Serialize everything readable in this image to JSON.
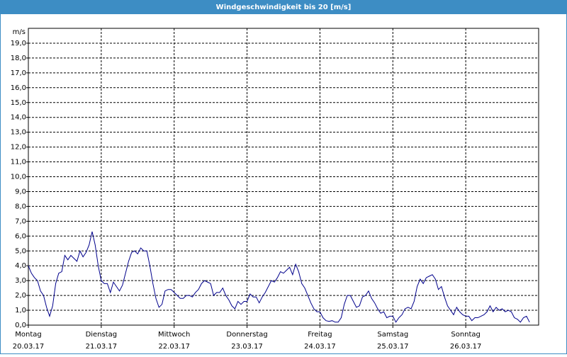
{
  "chart_data": {
    "type": "line",
    "title": "Windgeschwindigkeit bis 20 [m/s]",
    "y_label": "m/s",
    "x": [
      0,
      1,
      2,
      3,
      4,
      5,
      6,
      7,
      8,
      9,
      10,
      11,
      12,
      13,
      14,
      15,
      16,
      17,
      18,
      19,
      20,
      21,
      22,
      23,
      24,
      25,
      26,
      27,
      28,
      29,
      30,
      31,
      32,
      33,
      34,
      35,
      36,
      37,
      38,
      39,
      40,
      41,
      42,
      43,
      44,
      45,
      46,
      47,
      48,
      49,
      50,
      51,
      52,
      53,
      54,
      55,
      56,
      57,
      58,
      59,
      60,
      61,
      62,
      63,
      64,
      65,
      66,
      67,
      68,
      69,
      70,
      71,
      72,
      73,
      74,
      75,
      76,
      77,
      78,
      79,
      80,
      81,
      82,
      83,
      84,
      85,
      86,
      87,
      88,
      89,
      90,
      91,
      92,
      93,
      94,
      95,
      96,
      97,
      98,
      99,
      100,
      101,
      102,
      103,
      104,
      105,
      106,
      107,
      108,
      109,
      110,
      111,
      112,
      113,
      114,
      115,
      116,
      117,
      118,
      119,
      120,
      121,
      122,
      123,
      124,
      125,
      126,
      127,
      128,
      129,
      130,
      131,
      132,
      133,
      134,
      135,
      136,
      137,
      138,
      139,
      140,
      141,
      142,
      143,
      144,
      145,
      146,
      147,
      148,
      149,
      150,
      151,
      152,
      153,
      154,
      155,
      156,
      157,
      158,
      159,
      160,
      161,
      162,
      163,
      164,
      165
    ],
    "series": [
      {
        "name": "Windgeschwindigkeit",
        "color": "#00008b",
        "values": [
          4.0,
          3.5,
          3.2,
          3.0,
          2.3,
          2.0,
          1.2,
          0.6,
          1.3,
          2.8,
          3.5,
          3.6,
          4.7,
          4.4,
          4.7,
          4.5,
          4.3,
          5.0,
          4.6,
          4.9,
          5.4,
          6.3,
          5.4,
          4.0,
          3.0,
          2.8,
          2.8,
          2.2,
          2.9,
          2.6,
          2.3,
          2.7,
          3.5,
          4.3,
          4.9,
          5.0,
          4.8,
          5.2,
          5.0,
          5.0,
          4.0,
          2.8,
          1.8,
          1.2,
          1.4,
          2.3,
          2.4,
          2.4,
          2.2,
          2.0,
          1.8,
          1.8,
          2.0,
          2.0,
          1.9,
          2.2,
          2.4,
          2.8,
          3.0,
          2.9,
          2.8,
          2.0,
          2.2,
          2.2,
          2.5,
          2.0,
          1.7,
          1.3,
          1.1,
          1.6,
          1.4,
          1.6,
          1.6,
          2.1,
          1.9,
          1.9,
          1.5,
          1.9,
          2.2,
          2.6,
          3.0,
          2.9,
          3.2,
          3.6,
          3.5,
          3.7,
          3.9,
          3.4,
          4.1,
          3.6,
          2.8,
          2.5,
          2.0,
          1.5,
          1.1,
          0.9,
          0.9,
          0.5,
          0.3,
          0.25,
          0.3,
          0.2,
          0.2,
          0.5,
          1.4,
          2.0,
          2.0,
          1.6,
          1.2,
          1.3,
          1.9,
          2.0,
          2.3,
          1.8,
          1.5,
          1.1,
          0.8,
          0.9,
          0.5,
          0.6,
          0.6,
          0.2,
          0.5,
          0.7,
          1.1,
          1.2,
          1.1,
          1.6,
          2.6,
          3.1,
          2.8,
          3.2,
          3.3,
          3.4,
          3.1,
          2.4,
          2.6,
          1.9,
          1.3,
          1.0,
          0.7,
          1.2,
          0.9,
          0.7,
          0.6,
          0.6,
          0.3,
          0.5,
          0.5,
          0.6,
          0.7,
          0.9,
          1.3,
          0.9,
          1.2,
          1.0,
          1.1,
          0.9,
          1.0,
          0.9,
          0.5,
          0.4,
          0.2,
          0.5,
          0.6,
          0.2
        ]
      }
    ],
    "xlim": [
      0,
      168
    ],
    "xticks": [
      {
        "value": 0,
        "label": "Montag"
      },
      {
        "value": 24,
        "label": "Dienstag"
      },
      {
        "value": 48,
        "label": "Mittwoch"
      },
      {
        "value": 72,
        "label": "Donnerstag"
      },
      {
        "value": 96,
        "label": "Freitag"
      },
      {
        "value": 120,
        "label": "Samstag"
      },
      {
        "value": 144,
        "label": "Sonntag"
      }
    ],
    "xtick_dates": [
      "20.03.17",
      "21.03.17",
      "22.03.17",
      "23.03.17",
      "24.03.17",
      "25.03.17",
      "26.03.17"
    ],
    "ylim": [
      0,
      20
    ],
    "yticks": [
      {
        "value": 0,
        "label": "0,0"
      },
      {
        "value": 1,
        "label": "1,0"
      },
      {
        "value": 2,
        "label": "2,0"
      },
      {
        "value": 3,
        "label": "3,0"
      },
      {
        "value": 4,
        "label": "4,0"
      },
      {
        "value": 5,
        "label": "5,0"
      },
      {
        "value": 6,
        "label": "6,0"
      },
      {
        "value": 7,
        "label": "7,0"
      },
      {
        "value": 8,
        "label": "8,0"
      },
      {
        "value": 9,
        "label": "9,0"
      },
      {
        "value": 10,
        "label": "10,0"
      },
      {
        "value": 11,
        "label": "11,0"
      },
      {
        "value": 12,
        "label": "12,0"
      },
      {
        "value": 13,
        "label": "13,0"
      },
      {
        "value": 14,
        "label": "14,0"
      },
      {
        "value": 15,
        "label": "15,0"
      },
      {
        "value": 16,
        "label": "16,0"
      },
      {
        "value": 17,
        "label": "17,0"
      },
      {
        "value": 18,
        "label": "18,0"
      },
      {
        "value": 19,
        "label": "19,0"
      }
    ],
    "grid": true
  }
}
